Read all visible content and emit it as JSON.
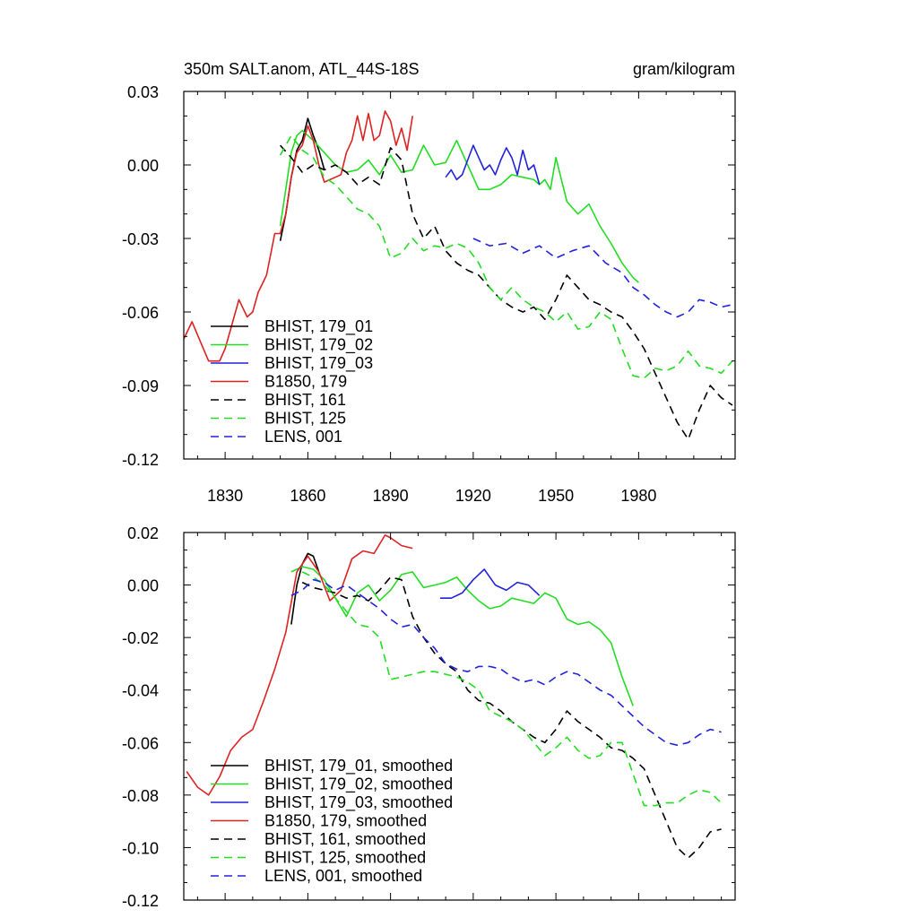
{
  "chart_data": [
    {
      "type": "line",
      "title_left": "350m SALT.anom, ATL_44S-18S",
      "title_right": "gram/kilogram",
      "xlabel": "",
      "ylabel": "",
      "xlim": [
        1815,
        2015
      ],
      "ylim": [
        -0.12,
        0.03
      ],
      "xticks": [
        1830,
        1860,
        1890,
        1920,
        1950,
        1980
      ],
      "xtick_labels": [
        "1830",
        "1860",
        "1890",
        "1920",
        "1950",
        "1980"
      ],
      "yticks": [
        0.03,
        0.0,
        -0.03,
        -0.06,
        -0.09,
        -0.12
      ],
      "ytick_labels": [
        "0.03",
        "0.00",
        "-0.03",
        "-0.06",
        "-0.09",
        "-0.12"
      ],
      "legend_position": "bottom-left",
      "series": [
        {
          "name": "BHIST, 179_01",
          "color": "#000000",
          "dash": "solid",
          "x": [
            1850,
            1852,
            1854,
            1856,
            1858,
            1860,
            1862,
            1864,
            1866
          ],
          "y": [
            -0.031,
            -0.02,
            -0.005,
            0.006,
            0.01,
            0.019,
            0.012,
            0.006,
            -0.002
          ]
        },
        {
          "name": "BHIST, 179_02",
          "color": "#22dd22",
          "dash": "solid",
          "x": [
            1850,
            1854,
            1856,
            1858,
            1862,
            1866,
            1870,
            1874,
            1878,
            1882,
            1886,
            1890,
            1894,
            1898,
            1902,
            1904,
            1906,
            1910,
            1914,
            1918,
            1922,
            1926,
            1930,
            1934,
            1938,
            1942,
            1944,
            1946,
            1948,
            1950,
            1954,
            1958,
            1962,
            1966,
            1970,
            1974,
            1978,
            1980
          ],
          "y": [
            -0.025,
            0.005,
            0.012,
            0.014,
            0.01,
            0.005,
            0.0,
            -0.003,
            -0.002,
            0.002,
            -0.004,
            0.004,
            -0.003,
            -0.002,
            0.008,
            0.004,
            0.0,
            0.001,
            0.01,
            0.0,
            -0.01,
            -0.01,
            -0.008,
            -0.004,
            -0.005,
            -0.006,
            -0.008,
            -0.006,
            -0.01,
            0.003,
            -0.015,
            -0.02,
            -0.016,
            -0.025,
            -0.032,
            -0.04,
            -0.046,
            -0.048
          ]
        },
        {
          "name": "BHIST, 179_03",
          "color": "#2222dd",
          "dash": "solid",
          "x": [
            1910,
            1912,
            1914,
            1916,
            1918,
            1920,
            1922,
            1924,
            1926,
            1928,
            1930,
            1932,
            1934,
            1936,
            1938,
            1940,
            1942,
            1944
          ],
          "y": [
            -0.005,
            -0.002,
            -0.006,
            -0.004,
            0.002,
            0.008,
            0.003,
            -0.002,
            0.0,
            -0.004,
            0.002,
            0.007,
            0.003,
            -0.004,
            0.006,
            -0.002,
            0.0,
            -0.008
          ]
        },
        {
          "name": "B1850, 179",
          "color": "#dd2222",
          "dash": "solid",
          "x": [
            1815,
            1818,
            1821,
            1824,
            1828,
            1830,
            1832,
            1835,
            1838,
            1840,
            1842,
            1845,
            1848,
            1850,
            1852,
            1854,
            1856,
            1858,
            1860,
            1862,
            1864,
            1866,
            1868,
            1870,
            1872,
            1874,
            1876,
            1878,
            1880,
            1882,
            1884,
            1886,
            1888,
            1890,
            1892,
            1894,
            1896,
            1898
          ],
          "y": [
            -0.071,
            -0.064,
            -0.072,
            -0.08,
            -0.08,
            -0.075,
            -0.067,
            -0.055,
            -0.062,
            -0.06,
            -0.052,
            -0.045,
            -0.028,
            -0.028,
            -0.02,
            -0.005,
            0.005,
            0.008,
            0.016,
            0.01,
            0.0,
            -0.007,
            -0.006,
            -0.005,
            -0.004,
            0.005,
            0.01,
            0.02,
            0.01,
            0.021,
            0.01,
            0.012,
            0.022,
            0.018,
            0.008,
            0.015,
            0.006,
            0.02
          ]
        },
        {
          "name": "BHIST, 161",
          "color": "#000000",
          "dash": "dashed",
          "x": [
            1850,
            1854,
            1858,
            1862,
            1866,
            1870,
            1874,
            1878,
            1882,
            1886,
            1890,
            1894,
            1898,
            1902,
            1906,
            1910,
            1914,
            1918,
            1922,
            1926,
            1930,
            1934,
            1938,
            1942,
            1946,
            1950,
            1954,
            1958,
            1962,
            1966,
            1970,
            1974,
            1978,
            1982,
            1986,
            1990,
            1994,
            1998,
            2002,
            2006,
            2010,
            2014
          ],
          "y": [
            0.008,
            0.003,
            -0.003,
            0.0,
            -0.002,
            0.0,
            -0.003,
            -0.008,
            -0.005,
            -0.008,
            0.007,
            0.002,
            -0.02,
            -0.03,
            -0.025,
            -0.035,
            -0.04,
            -0.043,
            -0.045,
            -0.05,
            -0.055,
            -0.058,
            -0.06,
            -0.058,
            -0.063,
            -0.055,
            -0.045,
            -0.05,
            -0.055,
            -0.057,
            -0.06,
            -0.062,
            -0.068,
            -0.075,
            -0.085,
            -0.095,
            -0.105,
            -0.112,
            -0.1,
            -0.09,
            -0.095,
            -0.098
          ]
        },
        {
          "name": "BHIST, 125",
          "color": "#22dd22",
          "dash": "dashed",
          "x": [
            1850,
            1854,
            1858,
            1862,
            1866,
            1870,
            1874,
            1878,
            1882,
            1886,
            1890,
            1894,
            1898,
            1902,
            1906,
            1910,
            1914,
            1918,
            1922,
            1926,
            1930,
            1934,
            1938,
            1942,
            1946,
            1950,
            1954,
            1958,
            1962,
            1966,
            1970,
            1974,
            1978,
            1982,
            1986,
            1990,
            1994,
            1998,
            2002,
            2006,
            2010,
            2014
          ],
          "y": [
            0.004,
            0.012,
            0.006,
            0.003,
            -0.005,
            -0.008,
            -0.013,
            -0.018,
            -0.02,
            -0.025,
            -0.038,
            -0.036,
            -0.03,
            -0.035,
            -0.033,
            -0.034,
            -0.032,
            -0.034,
            -0.04,
            -0.05,
            -0.055,
            -0.05,
            -0.055,
            -0.058,
            -0.06,
            -0.064,
            -0.06,
            -0.067,
            -0.066,
            -0.06,
            -0.063,
            -0.075,
            -0.086,
            -0.087,
            -0.083,
            -0.084,
            -0.082,
            -0.076,
            -0.082,
            -0.083,
            -0.085,
            -0.08
          ]
        },
        {
          "name": "LENS, 001",
          "color": "#2222dd",
          "dash": "dashed",
          "x": [
            1920,
            1926,
            1932,
            1938,
            1944,
            1950,
            1956,
            1962,
            1968,
            1974,
            1978,
            1982,
            1986,
            1990,
            1994,
            1998,
            2002,
            2006,
            2010,
            2014
          ],
          "y": [
            -0.03,
            -0.033,
            -0.032,
            -0.036,
            -0.033,
            -0.038,
            -0.035,
            -0.033,
            -0.04,
            -0.044,
            -0.05,
            -0.053,
            -0.057,
            -0.06,
            -0.062,
            -0.06,
            -0.055,
            -0.056,
            -0.058,
            -0.057
          ]
        }
      ]
    },
    {
      "type": "line",
      "xlim": [
        1815,
        2015
      ],
      "ylim": [
        -0.12,
        0.02
      ],
      "xticks": [
        1830,
        1860,
        1890,
        1920,
        1950,
        1980
      ],
      "yticks": [
        0.02,
        0.0,
        -0.02,
        -0.04,
        -0.06,
        -0.08,
        -0.1,
        -0.12
      ],
      "ytick_labels": [
        "0.02",
        "0.00",
        "-0.02",
        "-0.04",
        "-0.06",
        "-0.08",
        "-0.10",
        "-0.12"
      ],
      "legend_position": "bottom-left",
      "series": [
        {
          "name": "BHIST, 179_01, smoothed",
          "color": "#000000",
          "dash": "solid",
          "x": [
            1854,
            1856,
            1858,
            1860,
            1862,
            1864
          ],
          "y": [
            -0.015,
            0.0,
            0.008,
            0.012,
            0.011,
            0.005
          ]
        },
        {
          "name": "BHIST, 179_02, smoothed",
          "color": "#22dd22",
          "dash": "solid",
          "x": [
            1854,
            1858,
            1862,
            1866,
            1870,
            1874,
            1878,
            1882,
            1886,
            1890,
            1894,
            1898,
            1902,
            1906,
            1910,
            1914,
            1918,
            1922,
            1926,
            1930,
            1934,
            1938,
            1942,
            1946,
            1950,
            1954,
            1958,
            1962,
            1966,
            1970,
            1974,
            1978
          ],
          "y": [
            0.005,
            0.007,
            0.006,
            0.002,
            -0.005,
            -0.012,
            -0.003,
            0.0,
            -0.006,
            -0.002,
            0.004,
            0.005,
            -0.001,
            0.0,
            0.001,
            0.003,
            -0.002,
            -0.006,
            -0.009,
            -0.008,
            -0.005,
            -0.006,
            -0.007,
            -0.003,
            -0.005,
            -0.013,
            -0.015,
            -0.014,
            -0.017,
            -0.022,
            -0.035,
            -0.046
          ]
        },
        {
          "name": "BHIST, 179_03, smoothed",
          "color": "#2222dd",
          "dash": "solid",
          "x": [
            1908,
            1912,
            1916,
            1920,
            1924,
            1928,
            1932,
            1936,
            1940,
            1944
          ],
          "y": [
            -0.005,
            -0.005,
            -0.003,
            0.002,
            0.006,
            0.0,
            -0.002,
            0.001,
            0.0,
            -0.004
          ]
        },
        {
          "name": "B1850, 179, smoothed",
          "color": "#dd2222",
          "dash": "solid",
          "x": [
            1816,
            1820,
            1824,
            1828,
            1832,
            1836,
            1840,
            1844,
            1848,
            1852,
            1856,
            1860,
            1864,
            1868,
            1872,
            1876,
            1880,
            1884,
            1888,
            1890,
            1894,
            1898
          ],
          "y": [
            -0.071,
            -0.077,
            -0.08,
            -0.073,
            -0.063,
            -0.058,
            -0.055,
            -0.044,
            -0.032,
            -0.018,
            0.005,
            0.011,
            0.005,
            -0.006,
            -0.002,
            0.01,
            0.013,
            0.012,
            0.019,
            0.018,
            0.015,
            0.014
          ]
        },
        {
          "name": "BHIST, 161, smoothed",
          "color": "#000000",
          "dash": "dashed",
          "x": [
            1858,
            1862,
            1866,
            1870,
            1874,
            1878,
            1882,
            1886,
            1890,
            1894,
            1898,
            1902,
            1906,
            1910,
            1914,
            1918,
            1922,
            1926,
            1930,
            1934,
            1938,
            1942,
            1946,
            1950,
            1954,
            1958,
            1962,
            1966,
            1970,
            1974,
            1978,
            1982,
            1986,
            1990,
            1994,
            1998,
            2002,
            2006,
            2010
          ],
          "y": [
            0.001,
            -0.001,
            -0.002,
            -0.003,
            -0.005,
            -0.004,
            -0.006,
            -0.002,
            0.003,
            0.002,
            -0.012,
            -0.02,
            -0.026,
            -0.03,
            -0.033,
            -0.04,
            -0.044,
            -0.045,
            -0.048,
            -0.052,
            -0.055,
            -0.058,
            -0.06,
            -0.055,
            -0.048,
            -0.052,
            -0.055,
            -0.058,
            -0.062,
            -0.063,
            -0.066,
            -0.07,
            -0.08,
            -0.09,
            -0.1,
            -0.104,
            -0.1,
            -0.094,
            -0.093
          ]
        },
        {
          "name": "BHIST, 125, smoothed",
          "color": "#22dd22",
          "dash": "dashed",
          "x": [
            1858,
            1862,
            1866,
            1870,
            1874,
            1878,
            1882,
            1886,
            1890,
            1894,
            1898,
            1902,
            1906,
            1910,
            1914,
            1918,
            1922,
            1926,
            1930,
            1934,
            1938,
            1942,
            1946,
            1950,
            1954,
            1958,
            1962,
            1966,
            1970,
            1974,
            1978,
            1982,
            1986,
            1990,
            1994,
            1998,
            2002,
            2006,
            2010
          ],
          "y": [
            0.005,
            0.003,
            0.0,
            -0.005,
            -0.01,
            -0.015,
            -0.016,
            -0.02,
            -0.036,
            -0.035,
            -0.034,
            -0.033,
            -0.033,
            -0.034,
            -0.035,
            -0.037,
            -0.04,
            -0.048,
            -0.05,
            -0.052,
            -0.055,
            -0.06,
            -0.065,
            -0.062,
            -0.058,
            -0.063,
            -0.066,
            -0.065,
            -0.06,
            -0.06,
            -0.072,
            -0.084,
            -0.084,
            -0.083,
            -0.083,
            -0.08,
            -0.078,
            -0.079,
            -0.083
          ]
        },
        {
          "name": "LENS, 001, smoothed",
          "color": "#2222dd",
          "dash": "dashed",
          "x": [
            1854,
            1858,
            1862,
            1866,
            1870,
            1874,
            1878,
            1882,
            1886,
            1890,
            1894,
            1898,
            1902,
            1906,
            1910,
            1914,
            1918,
            1922,
            1926,
            1930,
            1934,
            1938,
            1942,
            1946,
            1950,
            1954,
            1958,
            1962,
            1966,
            1970,
            1974,
            1978,
            1982,
            1986,
            1990,
            1994,
            1998,
            2002,
            2006,
            2010
          ],
          "y": [
            -0.004,
            -0.002,
            0.002,
            0.001,
            -0.002,
            0.0,
            -0.003,
            -0.006,
            -0.009,
            -0.013,
            -0.016,
            -0.015,
            -0.02,
            -0.024,
            -0.03,
            -0.032,
            -0.033,
            -0.031,
            -0.031,
            -0.032,
            -0.035,
            -0.037,
            -0.036,
            -0.038,
            -0.035,
            -0.033,
            -0.034,
            -0.037,
            -0.04,
            -0.042,
            -0.046,
            -0.05,
            -0.054,
            -0.057,
            -0.06,
            -0.061,
            -0.06,
            -0.057,
            -0.055,
            -0.056
          ]
        }
      ]
    }
  ]
}
